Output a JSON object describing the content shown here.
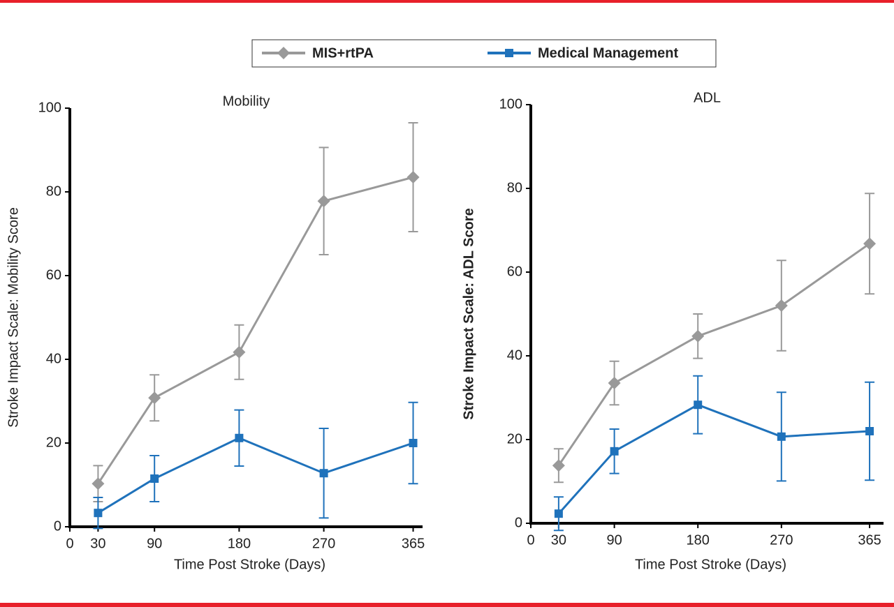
{
  "chart_data": [
    {
      "type": "line",
      "title": "Mobility",
      "xlabel": "Time Post Stroke (Days)",
      "ylabel": "Stroke Impact Scale: Mobility Score",
      "x": [
        30,
        90,
        180,
        270,
        365
      ],
      "xlim": [
        0,
        375
      ],
      "xticks": [
        0,
        30,
        90,
        180,
        270,
        365
      ],
      "ylim": [
        0,
        100
      ],
      "yticks": [
        0,
        20,
        40,
        60,
        80,
        100
      ],
      "series": [
        {
          "name": "MIS+rtPA",
          "color": "#999999",
          "marker": "diamond",
          "values": [
            10.3,
            30.8,
            41.7,
            77.8,
            83.5
          ],
          "errors": [
            4.3,
            5.5,
            6.5,
            12.8,
            13
          ]
        },
        {
          "name": "Medical Management",
          "color": "#1f72bb",
          "marker": "square",
          "values": [
            3.3,
            11.5,
            21.2,
            12.8,
            20
          ],
          "errors": [
            3.7,
            5.5,
            6.7,
            10.7,
            9.7
          ]
        }
      ]
    },
    {
      "type": "line",
      "title": "ADL",
      "xlabel": "Time Post Stroke (Days)",
      "ylabel": "Stroke Impact Scale: ADL Score",
      "x": [
        30,
        90,
        180,
        270,
        365
      ],
      "xlim": [
        0,
        380
      ],
      "xticks": [
        0,
        30,
        90,
        180,
        270,
        365
      ],
      "ylim": [
        0,
        100
      ],
      "yticks": [
        0,
        20,
        40,
        60,
        80,
        100
      ],
      "series": [
        {
          "name": "MIS+rtPA",
          "color": "#999999",
          "marker": "diamond",
          "values": [
            13.8,
            33.5,
            44.7,
            52,
            66.8
          ],
          "errors": [
            4,
            5.2,
            5.3,
            10.8,
            12
          ]
        },
        {
          "name": "Medical Management",
          "color": "#1f72bb",
          "marker": "square",
          "values": [
            2.3,
            17.2,
            28.3,
            20.7,
            22
          ],
          "errors": [
            4,
            5.3,
            6.9,
            10.6,
            11.7
          ]
        }
      ]
    }
  ]
}
